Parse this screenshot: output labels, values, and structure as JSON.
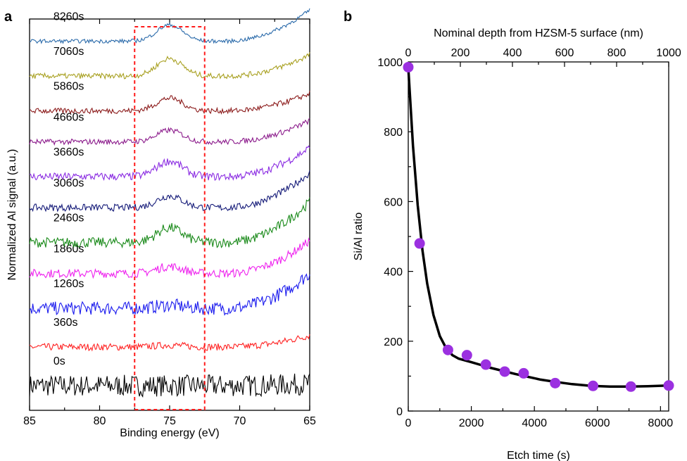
{
  "chart_data": [
    {
      "panel": "a",
      "type": "line",
      "xlabel": "Binding energy (eV)",
      "ylabel": "Normalized Al signal (a.u.)",
      "xlim": [
        85,
        65
      ],
      "x_reversed": true,
      "x_ticks": [
        "85",
        "80",
        "75",
        "70",
        "65"
      ],
      "y_ticks": [],
      "highlight_region": {
        "x_range": [
          77.5,
          72.5
        ],
        "style": "red dashed rectangle"
      },
      "series": [
        {
          "name": "0s",
          "color": "#000000",
          "baseline": 0.0,
          "peak_height": 0.0,
          "edge_rise": 0.05,
          "noise": 0.28
        },
        {
          "name": "360s",
          "color": "#ff2020",
          "baseline": 1.0,
          "peak_height": 0.05,
          "edge_rise": 0.3,
          "noise": 0.09
        },
        {
          "name": "1260s",
          "color": "#1a1aee",
          "baseline": 2.0,
          "peak_height": 0.08,
          "edge_rise": 0.9,
          "noise": 0.17
        },
        {
          "name": "1860s",
          "color": "#ee22ee",
          "baseline": 2.9,
          "peak_height": 0.18,
          "edge_rise": 0.85,
          "noise": 0.11
        },
        {
          "name": "2460s",
          "color": "#1a8a1a",
          "baseline": 3.7,
          "peak_height": 0.38,
          "edge_rise": 1.05,
          "noise": 0.13
        },
        {
          "name": "3060s",
          "color": "#141a78",
          "baseline": 4.6,
          "peak_height": 0.3,
          "edge_rise": 0.9,
          "noise": 0.09
        },
        {
          "name": "3660s",
          "color": "#8a2be2",
          "baseline": 5.4,
          "peak_height": 0.4,
          "edge_rise": 0.75,
          "noise": 0.1
        },
        {
          "name": "4660s",
          "color": "#8b1a8b",
          "baseline": 6.3,
          "peak_height": 0.3,
          "edge_rise": 0.55,
          "noise": 0.07
        },
        {
          "name": "5860s",
          "color": "#8b1a1a",
          "baseline": 7.1,
          "peak_height": 0.33,
          "edge_rise": 0.45,
          "noise": 0.07
        },
        {
          "name": "7060s",
          "color": "#a8a020",
          "baseline": 8.0,
          "peak_height": 0.45,
          "edge_rise": 0.55,
          "noise": 0.07
        },
        {
          "name": "8260s",
          "color": "#2a6aaa",
          "baseline": 8.9,
          "peak_height": 0.42,
          "edge_rise": 0.8,
          "noise": 0.05
        }
      ]
    },
    {
      "panel": "b",
      "type": "scatter",
      "xlabel": "Etch time (s)",
      "ylabel": "Si/Al ratio",
      "secondary_xlabel": "Nominal depth from HZSM-5 surface (nm)",
      "xlim": [
        0,
        8260
      ],
      "ylim": [
        0,
        1000
      ],
      "x_ticks": [
        0,
        2000,
        4000,
        6000,
        8000
      ],
      "y_ticks": [
        0,
        200,
        400,
        600,
        800,
        1000
      ],
      "secondary_xlim": [
        0,
        1000
      ],
      "secondary_x_ticks": [
        0,
        200,
        400,
        600,
        800,
        1000
      ],
      "marker_color": "#9b30e0",
      "points": [
        {
          "x": 0,
          "y": 985
        },
        {
          "x": 360,
          "y": 480
        },
        {
          "x": 1260,
          "y": 175
        },
        {
          "x": 1860,
          "y": 160
        },
        {
          "x": 2460,
          "y": 133
        },
        {
          "x": 3060,
          "y": 113
        },
        {
          "x": 3660,
          "y": 108
        },
        {
          "x": 4660,
          "y": 80
        },
        {
          "x": 5860,
          "y": 72
        },
        {
          "x": 7060,
          "y": 70
        },
        {
          "x": 8260,
          "y": 73
        }
      ],
      "fit_curve": {
        "color": "#000000",
        "x": [
          0,
          150,
          300,
          450,
          600,
          800,
          1000,
          1200,
          1400,
          1600,
          1800,
          2000,
          2300,
          2600,
          3000,
          3400,
          3800,
          4200,
          4700,
          5200,
          5800,
          6400,
          7000,
          7600,
          8260
        ],
        "y": [
          985,
          760,
          590,
          460,
          365,
          275,
          215,
          180,
          160,
          150,
          145,
          140,
          132,
          124,
          115,
          106,
          98,
          90,
          83,
          77,
          72,
          70,
          70,
          71,
          73
        ]
      }
    }
  ]
}
